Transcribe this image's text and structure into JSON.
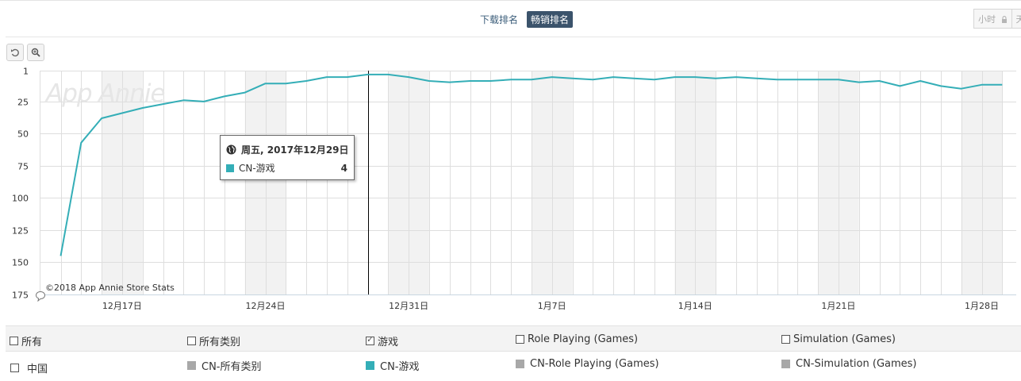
{
  "tabs": [
    {
      "label": "下载排名",
      "active": false
    },
    {
      "label": "畅销排名",
      "active": true
    }
  ],
  "segment": {
    "hour_label": "小时",
    "lock_icon": "lock-icon",
    "next_label": "天"
  },
  "toolbar": {
    "reset_icon": "reset-zoom-icon",
    "zoom_icon": "zoom-icon"
  },
  "tooltip": {
    "date": "周五, 2017年12月29日",
    "icon": "globe-icon",
    "series": "CN-游戏",
    "value": "4",
    "color": "#34aeb7"
  },
  "watermark": "App Annie",
  "copyright": "©2018 App Annie Store Stats",
  "chart_data": {
    "type": "line",
    "y_axis": {
      "reversed": true,
      "min": 1,
      "max": 175,
      "ticks": [
        "1",
        "25",
        "50",
        "75",
        "100",
        "125",
        "150",
        "175"
      ],
      "tick_values": [
        1,
        25,
        50,
        75,
        100,
        125,
        150,
        175
      ]
    },
    "x_axis": {
      "ticks": [
        "12月17日",
        "12月24日",
        "12月31日",
        "1月7日",
        "1月14日",
        "1月21日",
        "1月28日"
      ],
      "start_date": "2017-12-14",
      "end_date": "2018-01-29"
    },
    "grid": true,
    "shaded_weekends": true,
    "crosshair_date": "2017-12-29",
    "series": [
      {
        "name": "CN-游戏",
        "color": "#34aeb7",
        "x": [
          "2017-12-14",
          "2017-12-15",
          "2017-12-16",
          "2017-12-17",
          "2017-12-18",
          "2017-12-19",
          "2017-12-20",
          "2017-12-21",
          "2017-12-22",
          "2017-12-23",
          "2017-12-24",
          "2017-12-25",
          "2017-12-26",
          "2017-12-27",
          "2017-12-28",
          "2017-12-29",
          "2017-12-30",
          "2017-12-31",
          "2018-01-01",
          "2018-01-02",
          "2018-01-03",
          "2018-01-04",
          "2018-01-05",
          "2018-01-06",
          "2018-01-07",
          "2018-01-08",
          "2018-01-09",
          "2018-01-10",
          "2018-01-11",
          "2018-01-12",
          "2018-01-13",
          "2018-01-14",
          "2018-01-15",
          "2018-01-16",
          "2018-01-17",
          "2018-01-18",
          "2018-01-19",
          "2018-01-20",
          "2018-01-21",
          "2018-01-22",
          "2018-01-23",
          "2018-01-24",
          "2018-01-25",
          "2018-01-26",
          "2018-01-27",
          "2018-01-28",
          "2018-01-29"
        ],
        "values": [
          145,
          57,
          38,
          34,
          30,
          27,
          24,
          25,
          21,
          18,
          11,
          11,
          9,
          6,
          6,
          4,
          4,
          6,
          9,
          10,
          9,
          9,
          8,
          8,
          6,
          7,
          8,
          6,
          7,
          8,
          6,
          6,
          7,
          6,
          7,
          8,
          8,
          8,
          8,
          10,
          9,
          13,
          9,
          13,
          15,
          12,
          12
        ]
      }
    ]
  },
  "legend": {
    "row1": [
      {
        "label": "所有",
        "checked": false
      },
      {
        "label": "所有类别",
        "checked": false
      },
      {
        "label": "游戏",
        "checked": true
      },
      {
        "label": "Role Playing (Games)",
        "checked": false
      },
      {
        "label": "Simulation (Games)",
        "checked": false
      }
    ],
    "row2_checkbox_label": "中国",
    "row2": [
      {
        "label": "CN-所有类别",
        "color": "#a8a8a8"
      },
      {
        "label": "CN-游戏",
        "color": "#34aeb7"
      },
      {
        "label": "CN-Role Playing (Games)",
        "color": "#a8a8a8"
      },
      {
        "label": "CN-Simulation (Games)",
        "color": "#a8a8a8"
      }
    ]
  }
}
